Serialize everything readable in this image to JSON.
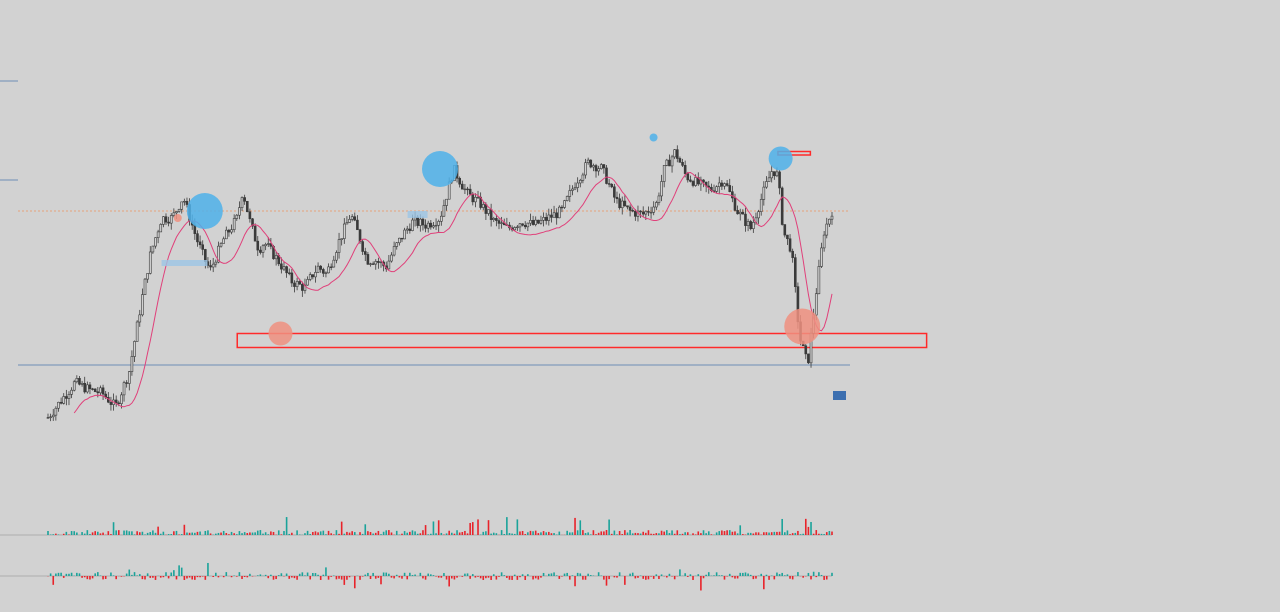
{
  "chart_data": {
    "type": "candlestick",
    "title": "",
    "xlabel": "",
    "ylabel": "",
    "x_range": [
      0,
      290
    ],
    "y_range": [
      0,
      100
    ],
    "grid": false,
    "key_points": [
      [
        0,
        15
      ],
      [
        10,
        25
      ],
      [
        15,
        23
      ],
      [
        20,
        22
      ],
      [
        25,
        18
      ],
      [
        30,
        28
      ],
      [
        35,
        50
      ],
      [
        38,
        62
      ],
      [
        42,
        72
      ],
      [
        46,
        72
      ],
      [
        50,
        78
      ],
      [
        55,
        66
      ],
      [
        58,
        60
      ],
      [
        60,
        57
      ],
      [
        65,
        66
      ],
      [
        70,
        72
      ],
      [
        72,
        80
      ],
      [
        75,
        70
      ],
      [
        78,
        63
      ],
      [
        80,
        65
      ],
      [
        85,
        60
      ],
      [
        90,
        54
      ],
      [
        95,
        52
      ],
      [
        98,
        56
      ],
      [
        100,
        58
      ],
      [
        103,
        56
      ],
      [
        108,
        66
      ],
      [
        112,
        73
      ],
      [
        115,
        67
      ],
      [
        118,
        60
      ],
      [
        121,
        60
      ],
      [
        125,
        58
      ],
      [
        128,
        63
      ],
      [
        132,
        68
      ],
      [
        135,
        71
      ],
      [
        140,
        70
      ],
      [
        145,
        72
      ],
      [
        148,
        80
      ],
      [
        150,
        86
      ],
      [
        155,
        79
      ],
      [
        160,
        76
      ],
      [
        163,
        73
      ],
      [
        165,
        71
      ],
      [
        170,
        69
      ],
      [
        175,
        71
      ],
      [
        180,
        70
      ],
      [
        185,
        72
      ],
      [
        190,
        74
      ],
      [
        195,
        82
      ],
      [
        200,
        88
      ],
      [
        205,
        86
      ],
      [
        210,
        77
      ],
      [
        215,
        74
      ],
      [
        220,
        73
      ],
      [
        225,
        76
      ],
      [
        228,
        86
      ],
      [
        232,
        91
      ],
      [
        236,
        84
      ],
      [
        240,
        82
      ],
      [
        245,
        80
      ],
      [
        250,
        83
      ],
      [
        255,
        74
      ],
      [
        260,
        69
      ],
      [
        265,
        80
      ],
      [
        268,
        86
      ],
      [
        270,
        84
      ],
      [
        272,
        68
      ],
      [
        275,
        63
      ],
      [
        278,
        38
      ],
      [
        281,
        30
      ],
      [
        284,
        50
      ],
      [
        287,
        68
      ],
      [
        290,
        74
      ]
    ],
    "moving_average": {
      "name": "MA",
      "color": "#e0407a",
      "period": 10
    },
    "reference_lines": [
      {
        "name": "horizontal-level",
        "value": 74,
        "color": "#e7a17b",
        "style": "dotted"
      },
      {
        "name": "price-line",
        "value": 30,
        "color": "#6e8fb5",
        "style": "solid"
      }
    ],
    "zones": [
      {
        "name": "support-zone",
        "x": [
          70,
          325
        ],
        "y": [
          35,
          39
        ],
        "color": "#ff2a2a"
      },
      {
        "name": "resistance-zone",
        "x": [
          270,
          282
        ],
        "y": [
          90,
          91
        ],
        "color": "#ff2a2a"
      }
    ],
    "bubbles": [
      {
        "x": 58,
        "y": 74,
        "size": "large",
        "color": "#4fb2ea"
      },
      {
        "x": 145,
        "y": 86,
        "size": "large",
        "color": "#4fb2ea"
      },
      {
        "x": 271,
        "y": 89,
        "size": "medium",
        "color": "#4fb2ea"
      },
      {
        "x": 224,
        "y": 95,
        "size": "small",
        "color": "#4fb2ea"
      },
      {
        "x": 86,
        "y": 39,
        "size": "medium",
        "color": "#f09080"
      },
      {
        "x": 279,
        "y": 41,
        "size": "large",
        "color": "#f09080"
      },
      {
        "x": 48,
        "y": 72,
        "size": "small",
        "color": "#f09080"
      }
    ],
    "volume_panel": {
      "type": "bar",
      "colors": [
        "#1aa39a",
        "#e8232a"
      ]
    },
    "delta_panel": {
      "type": "bar",
      "colors": [
        "#1aa39a",
        "#e8232a"
      ]
    },
    "price_tag": {
      "label": "",
      "color": "#3c6fb0"
    }
  }
}
